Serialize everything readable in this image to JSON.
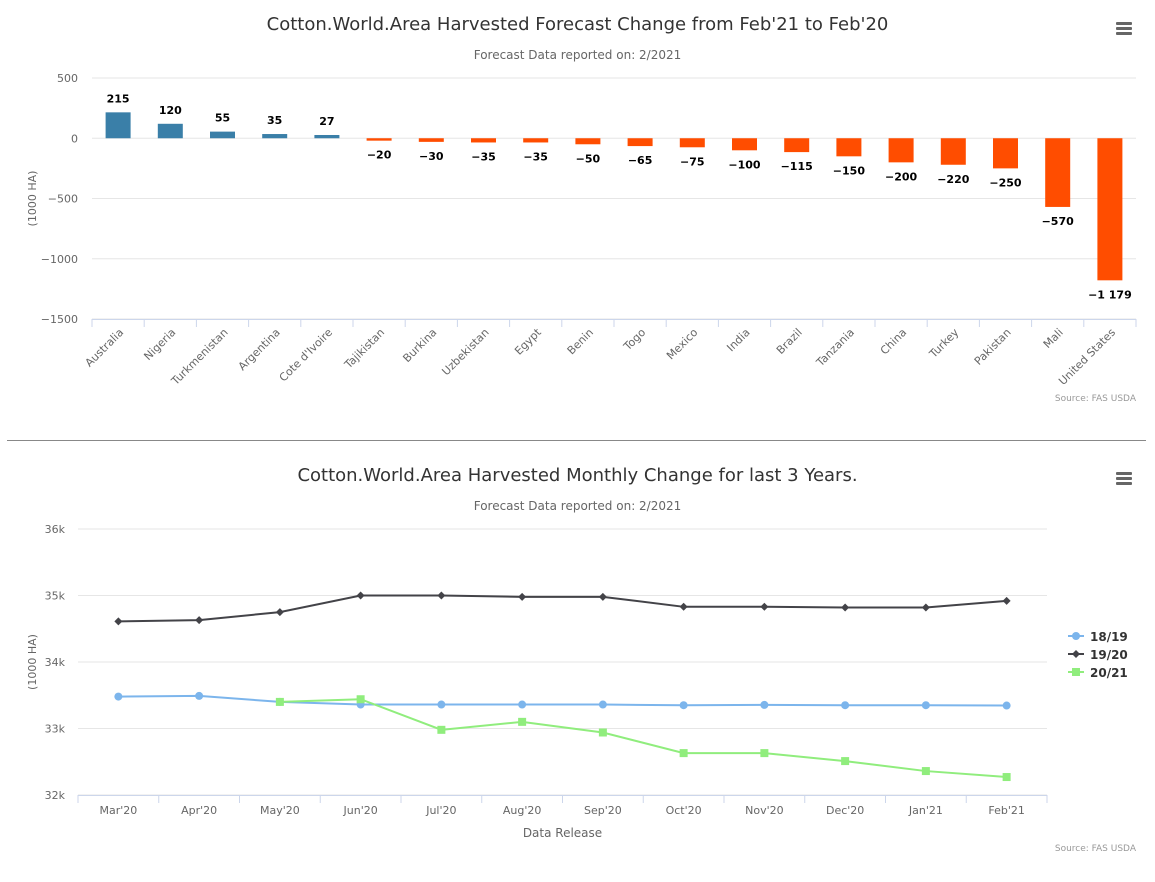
{
  "top_chart": {
    "title": "Cotton.World.Area Harvested Forecast Change from Feb'21 to Feb'20",
    "subtitle": "Forecast Data reported on: 2/2021",
    "credit": "Source: FAS USDA",
    "menu_icon": "hamburger-menu-icon"
  },
  "bottom_chart": {
    "title": "Cotton.World.Area Harvested Monthly Change for last 3 Years.",
    "subtitle": "Forecast Data reported on: 2/2021",
    "credit": "Source: FAS USDA",
    "menu_icon": "hamburger-menu-icon"
  },
  "colors": {
    "positive_bar": "#3a7fa8",
    "negative_bar": "#ff4d00",
    "series_18_19": "#7cb5ec",
    "series_19_20": "#434348",
    "series_20_21": "#90ed7d"
  },
  "chart_data": [
    {
      "type": "bar",
      "title": "Cotton.World.Area Harvested Forecast Change from Feb'21 to Feb'20",
      "subtitle": "Forecast Data reported on: 2/2021",
      "ylabel": "(1000 HA)",
      "ylim": [
        -1500,
        500
      ],
      "yticks": [
        500,
        0,
        -500,
        -1000,
        -1500
      ],
      "ytick_labels": [
        "500",
        "0",
        "−500",
        "−1000",
        "−1500"
      ],
      "categories": [
        "Australia",
        "Nigeria",
        "Turkmenistan",
        "Argentina",
        "Cote d'Ivoire",
        "Tajikistan",
        "Burkina",
        "Uzbekistan",
        "Egypt",
        "Benin",
        "Togo",
        "Mexico",
        "India",
        "Brazil",
        "Tanzania",
        "China",
        "Turkey",
        "Pakistan",
        "Mali",
        "United States"
      ],
      "values": [
        215,
        120,
        55,
        35,
        27,
        -20,
        -30,
        -35,
        -35,
        -50,
        -65,
        -75,
        -100,
        -115,
        -150,
        -200,
        -220,
        -250,
        -570,
        -1179
      ],
      "data_labels": [
        "215",
        "120",
        "55",
        "35",
        "27",
        "−20",
        "−30",
        "−35",
        "−35",
        "−50",
        "−65",
        "−75",
        "−100",
        "−115",
        "−150",
        "−200",
        "−220",
        "−250",
        "−570",
        "−1 179"
      ],
      "grid": true,
      "legend": "none"
    },
    {
      "type": "line",
      "title": "Cotton.World.Area Harvested Monthly Change for last 3 Years.",
      "subtitle": "Forecast Data reported on: 2/2021",
      "xlabel": "Data Release",
      "ylabel": "(1000 HA)",
      "ylim": [
        32000,
        36000
      ],
      "yticks": [
        36000,
        35000,
        34000,
        33000,
        32000
      ],
      "ytick_labels": [
        "36k",
        "35k",
        "34k",
        "33k",
        "32k"
      ],
      "categories": [
        "Mar'20",
        "Apr'20",
        "May'20",
        "Jun'20",
        "Jul'20",
        "Aug'20",
        "Sep'20",
        "Oct'20",
        "Nov'20",
        "Dec'20",
        "Jan'21",
        "Feb'21"
      ],
      "series": [
        {
          "name": "18/19",
          "marker": "circle",
          "values": [
            33480,
            33490,
            33400,
            33360,
            33360,
            33360,
            33360,
            33350,
            33355,
            33350,
            33350,
            33345
          ]
        },
        {
          "name": "19/20",
          "marker": "diamond",
          "values": [
            34610,
            34630,
            34750,
            35000,
            35000,
            34980,
            34980,
            34830,
            34830,
            34820,
            34820,
            34920
          ]
        },
        {
          "name": "20/21",
          "marker": "square",
          "values": [
            null,
            null,
            33400,
            33440,
            32980,
            33100,
            32940,
            32630,
            32630,
            32510,
            32360,
            32270
          ]
        }
      ],
      "grid": true,
      "legend": "right"
    }
  ]
}
